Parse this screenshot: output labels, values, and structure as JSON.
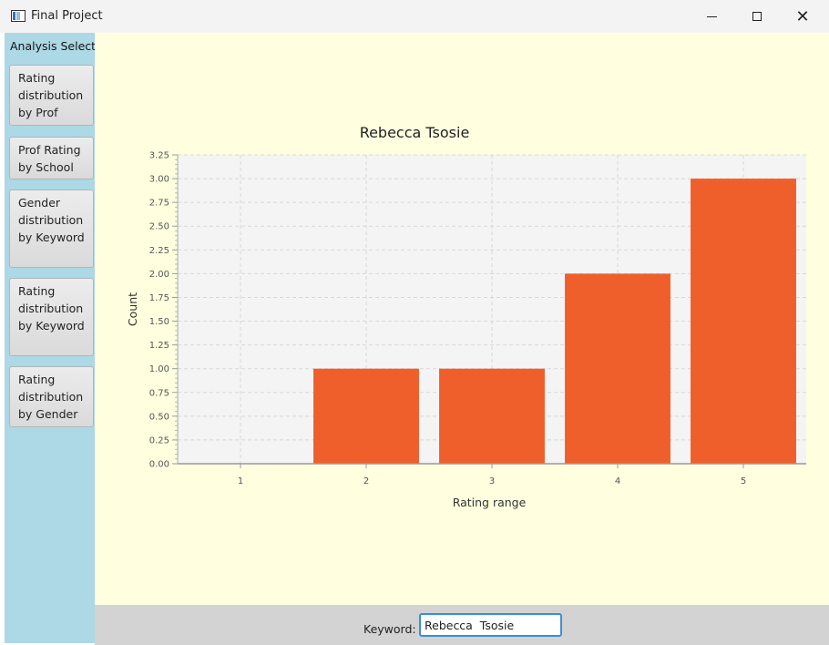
{
  "window": {
    "title": "Final Project",
    "minimize": "—",
    "maximize": "☐",
    "close": "✕"
  },
  "sidebar": {
    "title": "Analysis Select",
    "buttons": [
      {
        "label": "Rating distribution by Prof"
      },
      {
        "label": "Prof Rating by School"
      },
      {
        "label": "Gender distribution by Keyword"
      },
      {
        "label": "Rating distribution by Keyword"
      },
      {
        "label": "Rating distribution by Gender"
      }
    ]
  },
  "search": {
    "label": "Keyword:",
    "value": "Rebecca  Tsosie"
  },
  "colors": {
    "bar": "#ef5f2c",
    "plot_bg": "#f4f4f4",
    "sidebar_bg": "#add8e6",
    "main_bg": "#ffffe0",
    "bottom_bg": "#d3d3d3"
  },
  "chart_data": {
    "type": "bar",
    "title": "Rebecca  Tsosie",
    "xlabel": "Rating range",
    "ylabel": "Count",
    "categories": [
      "1",
      "2",
      "3",
      "4",
      "5"
    ],
    "values": [
      0,
      1,
      1,
      2,
      3
    ],
    "ylim": [
      0,
      3.25
    ],
    "yticks": [
      "0.00",
      "0.25",
      "0.50",
      "0.75",
      "1.00",
      "1.25",
      "1.50",
      "1.75",
      "2.00",
      "2.25",
      "2.50",
      "2.75",
      "3.00",
      "3.25"
    ],
    "grid": true,
    "legend": "none"
  }
}
